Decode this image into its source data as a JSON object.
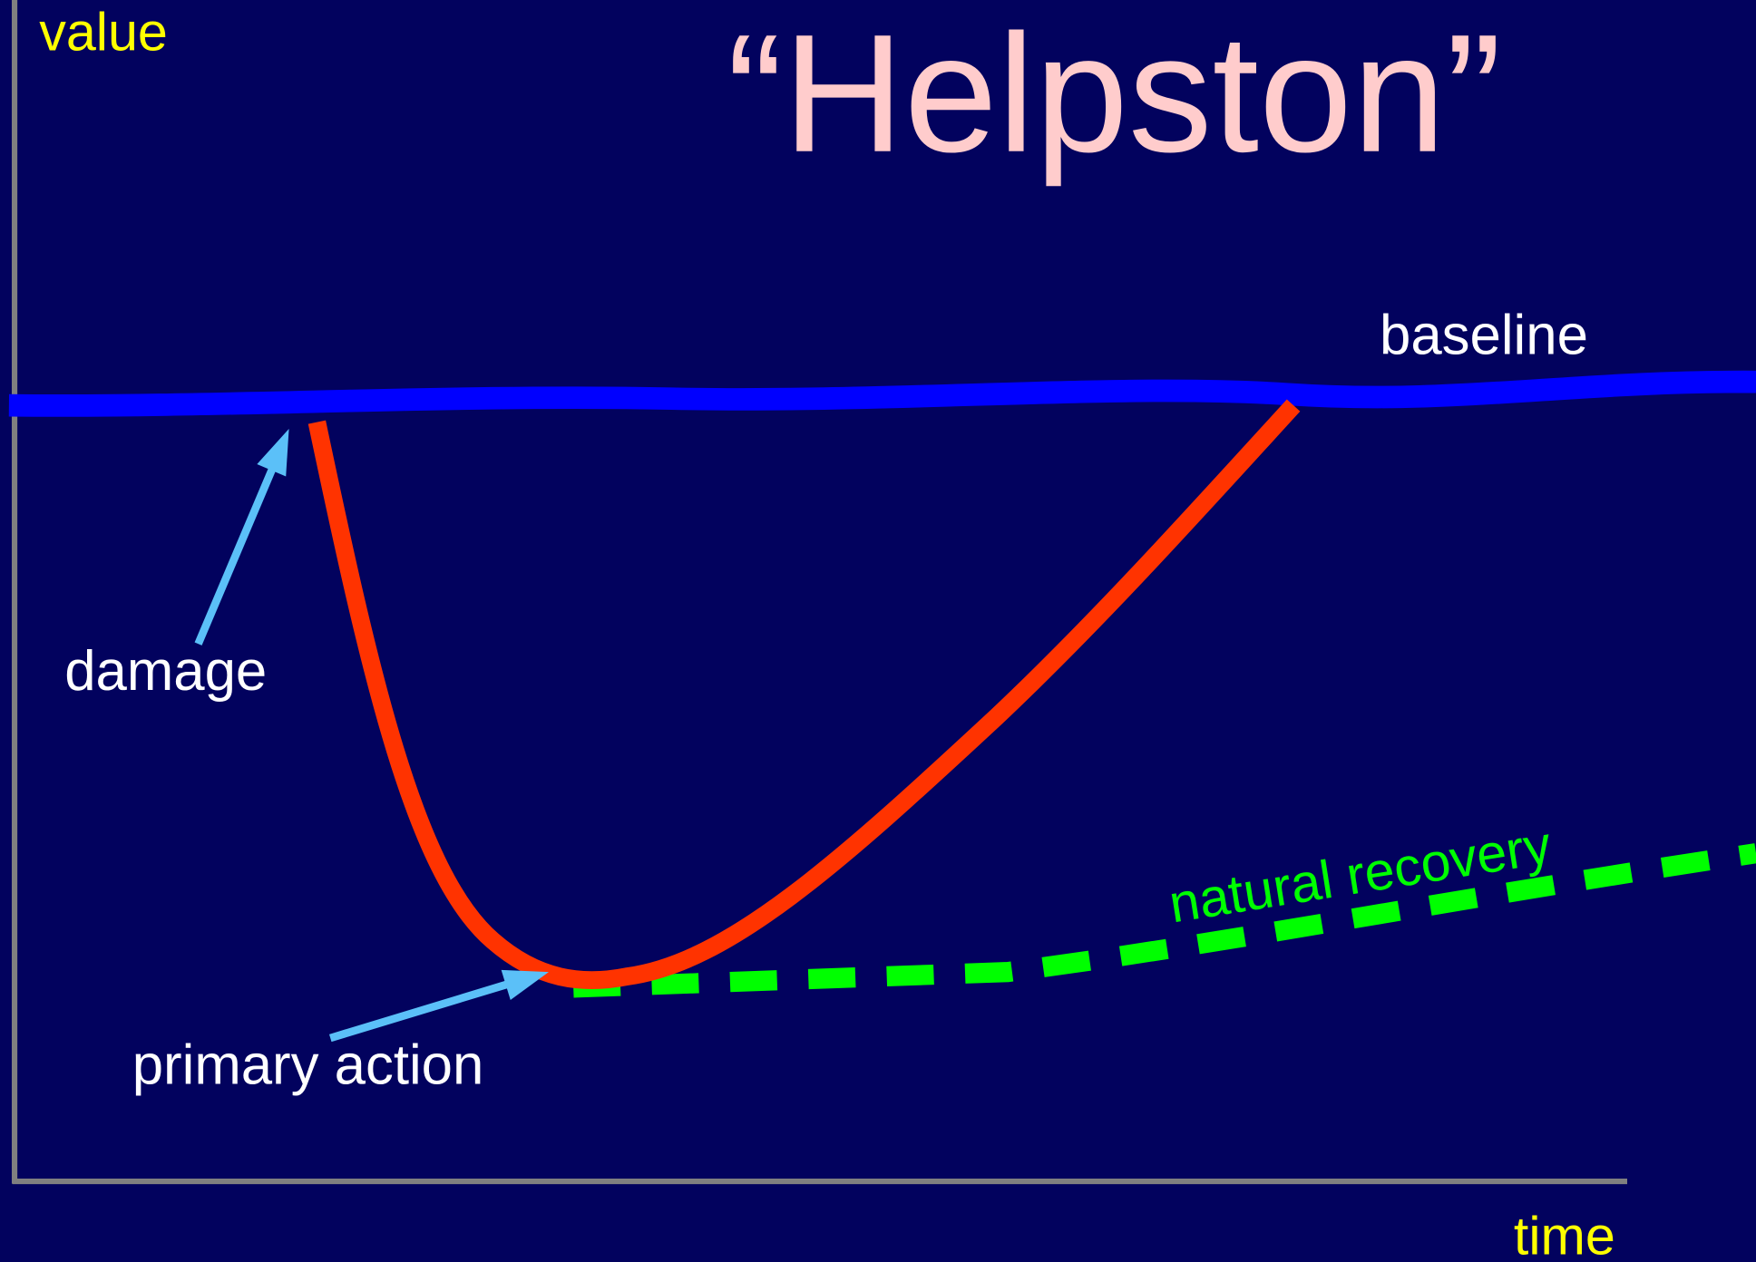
{
  "title": "“Helpston”",
  "axes": {
    "y_label": "value",
    "x_label": "time"
  },
  "labels": {
    "baseline": "baseline",
    "damage": "damage",
    "primary_action": "primary action",
    "natural_recovery": "natural recovery"
  }
}
